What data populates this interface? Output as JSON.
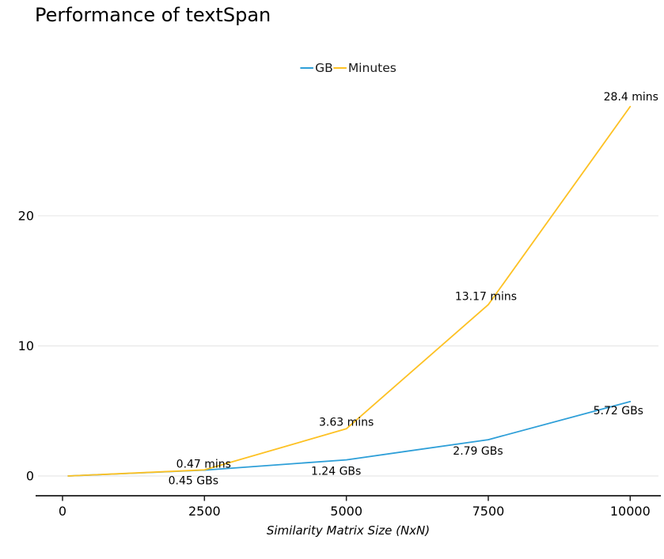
{
  "chart_data": {
    "type": "line",
    "title": "Performance of textSpan",
    "xlabel": "Similarity Matrix Size (NxN)",
    "ylabel": "",
    "x": [
      100,
      2500,
      5000,
      7500,
      10000
    ],
    "x_tick_labels": [
      "0",
      "2500",
      "5000",
      "7500",
      "10000"
    ],
    "x_ticks": [
      0,
      2500,
      5000,
      7500,
      10000
    ],
    "y_ticks": [
      0,
      10,
      20
    ],
    "y_tick_labels": [
      "0",
      "10",
      "20"
    ],
    "xlim": [
      -500,
      10550
    ],
    "ylim": [
      0,
      30
    ],
    "grid": "horizontal",
    "grid_color": "#e8e8e8",
    "axis_color": "#1a1a1a",
    "legend_position": "top-center",
    "series": [
      {
        "name": "GB",
        "color": "#2e9fd8",
        "values": [
          0.0,
          0.45,
          1.24,
          2.79,
          5.72
        ],
        "point_labels": [
          "",
          "0.45 GBs",
          "1.24 GBs",
          "2.79 GBs",
          "5.72 GBs"
        ]
      },
      {
        "name": "Minutes",
        "color": "#fdc123",
        "values": [
          0.0,
          0.47,
          3.63,
          13.17,
          28.4
        ],
        "point_labels": [
          "",
          "0.47 mins",
          "3.63 mins",
          "13.17 mins",
          "28.4 mins"
        ]
      }
    ]
  }
}
